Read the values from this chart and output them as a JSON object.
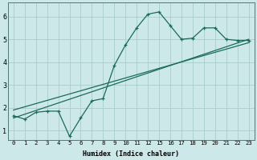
{
  "xlabel": "Humidex (Indice chaleur)",
  "bg_color": "#cce8e8",
  "grid_color": "#aacccc",
  "line_color": "#1a6b5a",
  "xlim_left": -0.5,
  "xlim_right": 23.5,
  "ylim": [
    0.6,
    6.6
  ],
  "xtick_vals": [
    0,
    1,
    2,
    3,
    4,
    5,
    6,
    7,
    8,
    9,
    10,
    11,
    12,
    15,
    16,
    17,
    18,
    19,
    20,
    21,
    22,
    23
  ],
  "xtick_pos": [
    0,
    1,
    2,
    3,
    4,
    5,
    6,
    7,
    8,
    9,
    10,
    11,
    12,
    13,
    14,
    15,
    16,
    17,
    18,
    19,
    20,
    21
  ],
  "yticks": [
    1,
    2,
    3,
    4,
    5,
    6
  ],
  "zigzag_x": [
    0,
    1,
    2,
    3,
    4,
    5,
    6,
    7,
    8,
    9,
    10,
    11,
    12,
    13,
    14,
    15,
    16,
    17,
    18,
    19,
    20,
    21
  ],
  "zigzag_y": [
    1.65,
    1.5,
    1.8,
    1.85,
    1.85,
    0.75,
    1.55,
    2.3,
    2.4,
    3.85,
    4.75,
    5.5,
    6.1,
    6.2,
    5.6,
    5.0,
    5.05,
    5.5,
    5.5,
    5.0,
    4.95,
    4.95
  ],
  "line1_x": [
    0,
    21
  ],
  "line1_y": [
    1.55,
    5.0
  ],
  "line2_x": [
    0,
    21
  ],
  "line2_y": [
    1.9,
    4.85
  ]
}
